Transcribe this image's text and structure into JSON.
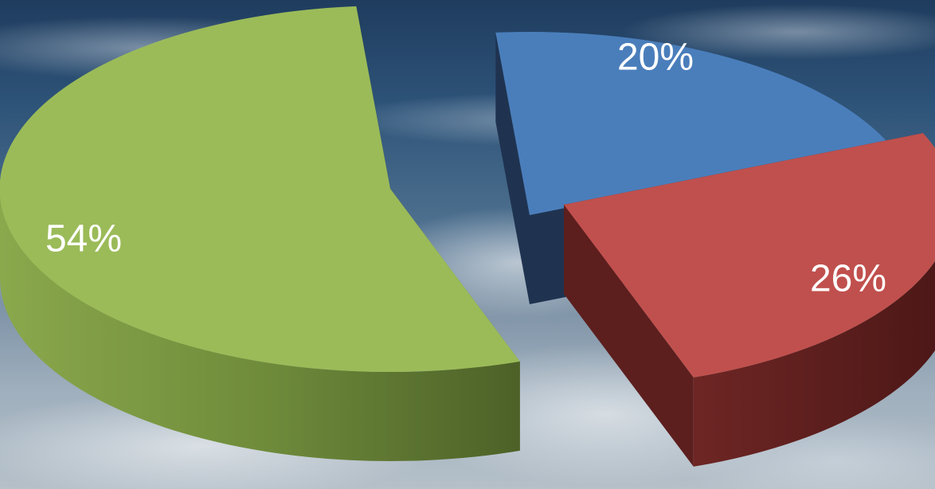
{
  "chart_data": {
    "type": "pie",
    "title": "",
    "style": "3d-exploded",
    "slices": [
      {
        "label": "20%",
        "value": 20,
        "color": "#4A7EBB",
        "side_color": "#1F3350"
      },
      {
        "label": "26%",
        "value": 26,
        "color": "#C0504D",
        "side_color": "#5C1F1E"
      },
      {
        "label": "54%",
        "value": 54,
        "color": "#9BBB59",
        "side_color": "#5E7433"
      }
    ]
  }
}
